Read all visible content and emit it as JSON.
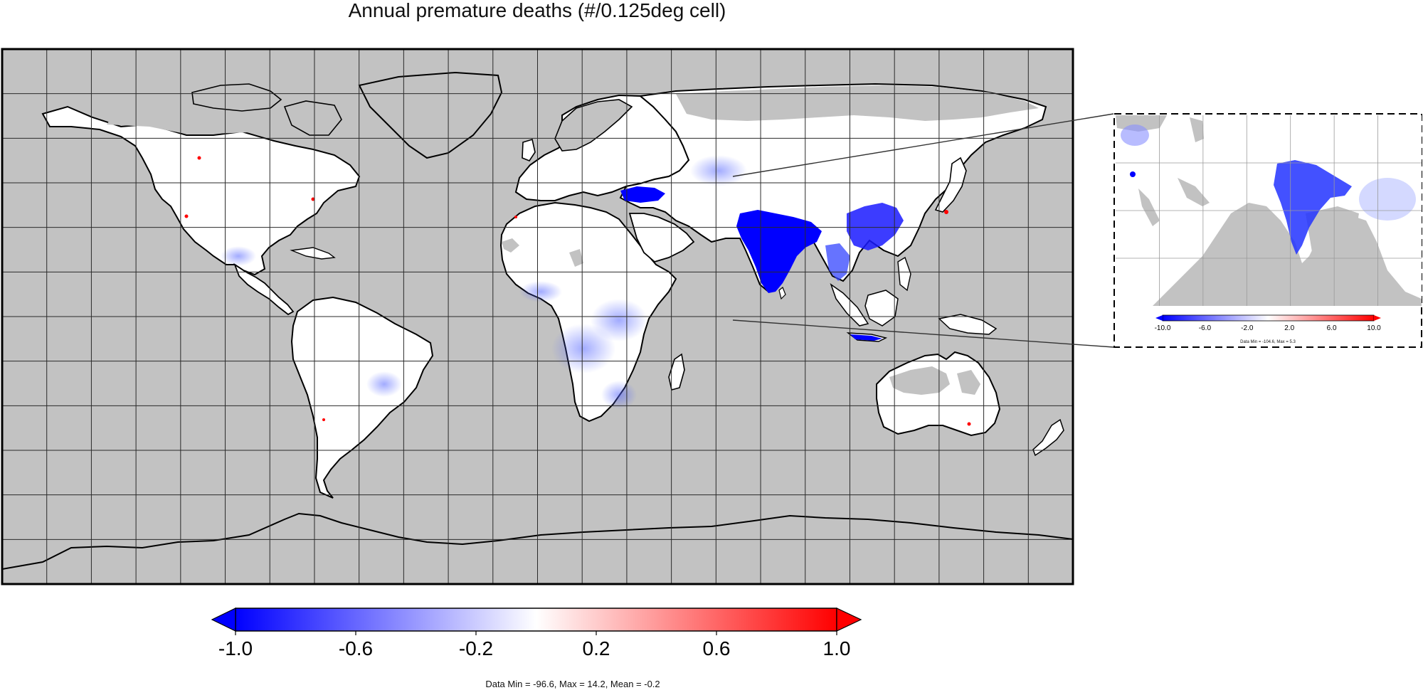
{
  "title": "Annual premature deaths (#/0.125deg cell)",
  "colors": {
    "ocean": "#c2c2c2",
    "land": "#ffffff",
    "no_data": "#b8b8b8",
    "negative": "#0000ff",
    "positive": "#ff0000",
    "grid": "#2a2a2a",
    "coast": "#000000"
  },
  "colorbar": {
    "min": -1.0,
    "max": 1.0,
    "tick_labels": [
      "-1.0",
      "-0.6",
      "-0.2",
      "0.2",
      "0.6",
      "1.0"
    ],
    "tick_values": [
      -1.0,
      -0.6,
      -0.2,
      0.2,
      0.6,
      1.0
    ],
    "extend": "both"
  },
  "stats": "Data Min = -96.6, Max = 14.2, Mean = -0.2",
  "inset": {
    "region": "South Asia zoom",
    "colorbar": {
      "min": -10.0,
      "max": 10.0,
      "tick_labels": [
        "-10.0",
        "-6.0",
        "-2.0",
        "2.0",
        "6.0",
        "10.0"
      ],
      "tick_values": [
        -10.0,
        -6.0,
        -2.0,
        2.0,
        6.0,
        10.0
      ]
    },
    "stats": "Data Min = -104.6, Max = 5.3"
  }
}
